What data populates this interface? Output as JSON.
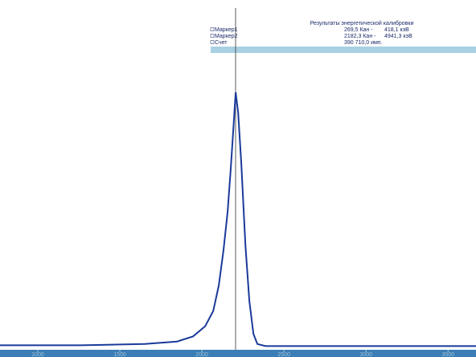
{
  "panel": {
    "title": "Результаты энергетической калибровки",
    "rows": [
      [
        "Маркер1",
        "269,5 Кан -",
        "418,1 кэВ"
      ],
      [
        "Маркер2",
        "2182,3 Кан -",
        "4941,3 кэВ"
      ],
      [
        "Счет",
        "390 710,0 имп."
      ]
    ]
  },
  "chart_data": {
    "type": "line",
    "x": [
      770,
      1260,
      1652,
      1848,
      1946,
      2020,
      2069,
      2103,
      2132,
      2157,
      2176,
      2191,
      2206,
      2221,
      2240,
      2265,
      2289,
      2314,
      2338,
      2387,
      3670
    ],
    "series": [
      {
        "color": "#1a3a9a",
        "values": [
          0.5,
          0.5,
          1,
          2,
          4,
          8,
          14,
          24,
          38,
          53,
          70,
          85,
          100,
          92,
          72,
          40,
          18,
          5,
          1,
          0.2,
          0.2
        ]
      }
    ],
    "xlim": [
      770,
      3670
    ],
    "xticks": [
      1000,
      1500,
      2000,
      2500,
      3000,
      3500
    ],
    "ylim": [
      0,
      130
    ]
  }
}
